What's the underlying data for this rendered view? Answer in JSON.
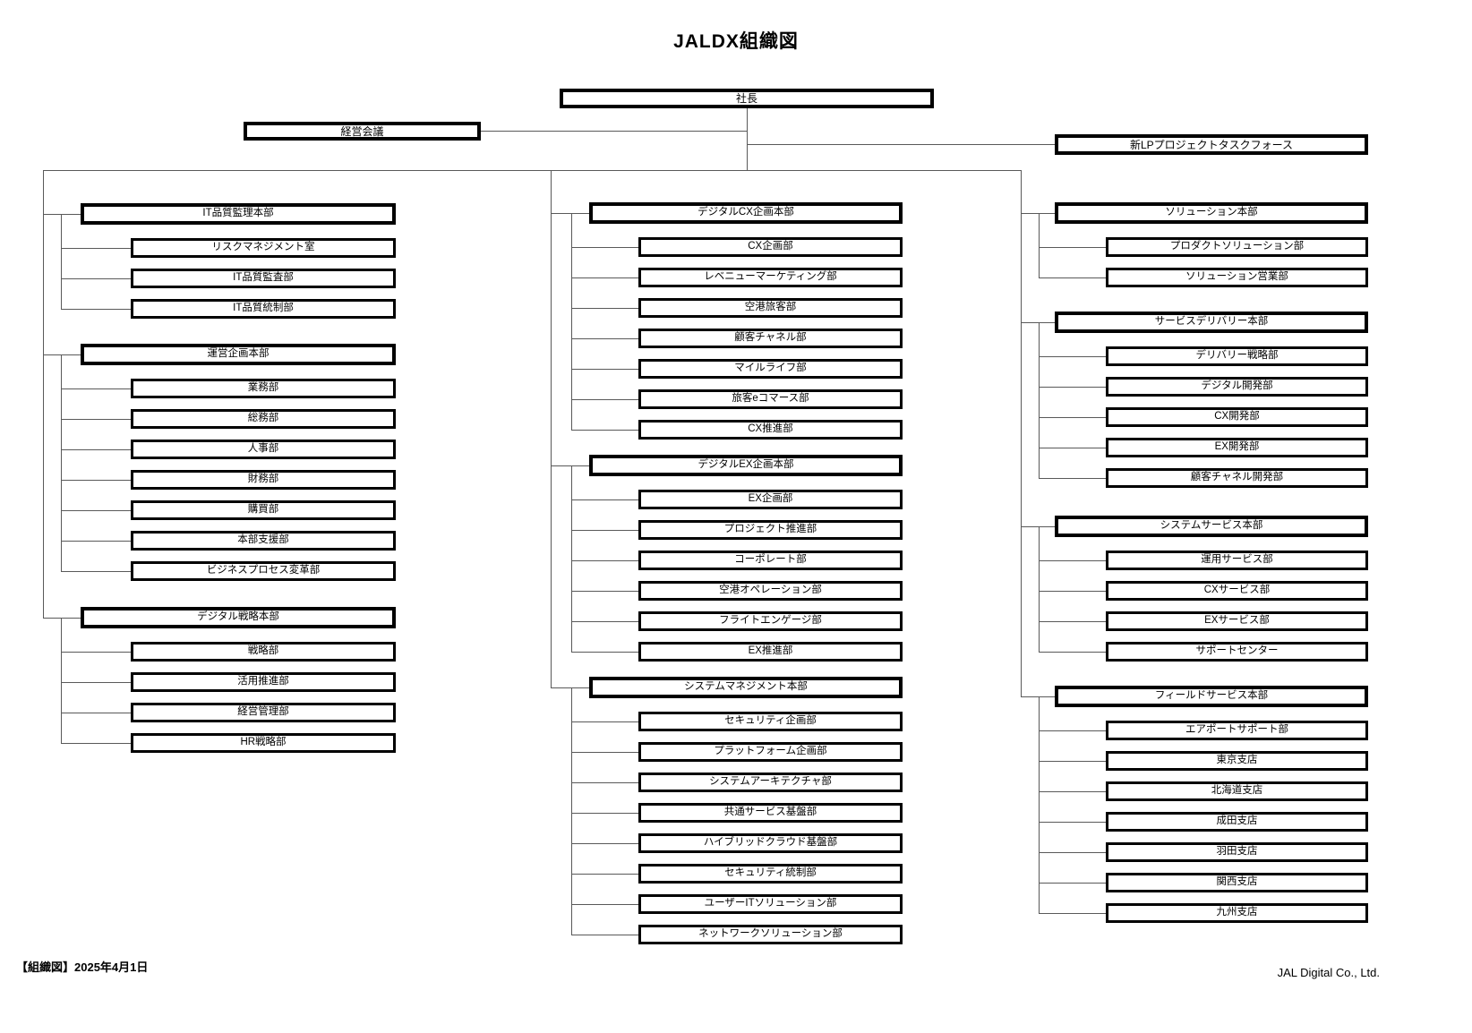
{
  "title": "JALDX組織図",
  "top": {
    "president": "社長",
    "management_meeting": "経営会議",
    "taskforce": "新LPプロジェクトタスクフォース"
  },
  "columns": [
    {
      "groups": [
        {
          "division": "IT品質監理本部",
          "departments": [
            "リスクマネジメント室",
            "IT品質監査部",
            "IT品質統制部"
          ]
        },
        {
          "division": "運営企画本部",
          "departments": [
            "業務部",
            "総務部",
            "人事部",
            "財務部",
            "購買部",
            "本部支援部",
            "ビジネスプロセス変革部"
          ]
        },
        {
          "division": "デジタル戦略本部",
          "departments": [
            "戦略部",
            "活用推進部",
            "経営管理部",
            "HR戦略部"
          ]
        }
      ]
    },
    {
      "groups": [
        {
          "division": "デジタルCX企画本部",
          "departments": [
            "CX企画部",
            "レベニューマーケティング部",
            "空港旅客部",
            "顧客チャネル部",
            "マイルライフ部",
            "旅客eコマース部",
            "CX推進部"
          ]
        },
        {
          "division": "デジタルEX企画本部",
          "departments": [
            "EX企画部",
            "プロジェクト推進部",
            "コーポレート部",
            "空港オペレーション部",
            "フライトエンゲージ部",
            "EX推進部"
          ]
        },
        {
          "division": "システムマネジメント本部",
          "departments": [
            "セキュリティ企画部",
            "プラットフォーム企画部",
            "システムアーキテクチャ部",
            "共通サービス基盤部",
            "ハイブリッドクラウド基盤部",
            "セキュリティ統制部",
            "ユーザーITソリューション部",
            "ネットワークソリューション部"
          ]
        }
      ]
    },
    {
      "groups": [
        {
          "division": "ソリューション本部",
          "departments": [
            "プロダクトソリューション部",
            "ソリューション営業部"
          ]
        },
        {
          "division": "サービスデリバリー本部",
          "departments": [
            "デリバリー戦略部",
            "デジタル開発部",
            "CX開発部",
            "EX開発部",
            "顧客チャネル開発部"
          ]
        },
        {
          "division": "システムサービス本部",
          "departments": [
            "運用サービス部",
            "CXサービス部",
            "EXサービス部",
            "サポートセンター"
          ]
        },
        {
          "division": "フィールドサービス本部",
          "departments": [
            "エアポートサポート部",
            "東京支店",
            "北海道支店",
            "成田支店",
            "羽田支店",
            "関西支店",
            "九州支店"
          ]
        }
      ]
    }
  ],
  "footer": {
    "date_label": "【組織図】2025年4月1日",
    "company": "JAL Digital Co., Ltd."
  },
  "colors": {
    "box_border": "#000000",
    "connector_line": "#595959",
    "background": "#ffffff"
  }
}
